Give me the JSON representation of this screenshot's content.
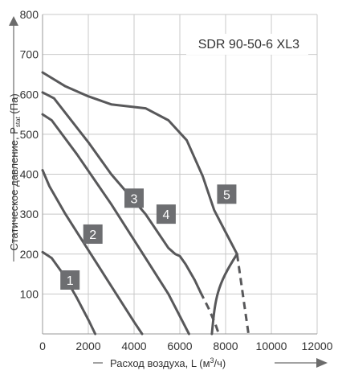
{
  "chart_data": {
    "type": "line",
    "model_label": "SDR 90-50-6 XL3",
    "xlabel": {
      "prefix": "Расход воздуха, L (м",
      "sup": "3",
      "suffix": "/ч)"
    },
    "ylabel": {
      "main": "Статическое давление, P",
      "sub": "stat",
      "suffix": " (Па)"
    },
    "xlim": [
      0,
      12000
    ],
    "ylim": [
      0,
      800
    ],
    "xticks": [
      "0",
      "2000",
      "4000",
      "6000",
      "8000",
      "10000",
      "12000"
    ],
    "yticks": [
      "100",
      "200",
      "300",
      "400",
      "500",
      "600",
      "700",
      "800"
    ],
    "grid": true,
    "series": [
      {
        "name": "1",
        "solid": [
          [
            0,
            205
          ],
          [
            400,
            190
          ],
          [
            900,
            150
          ],
          [
            1500,
            90
          ],
          [
            2050,
            30
          ],
          [
            2300,
            0
          ]
        ],
        "dashed": [],
        "label_at": [
          1200,
          135
        ]
      },
      {
        "name": "2",
        "solid": [
          [
            0,
            410
          ],
          [
            300,
            370
          ],
          [
            1000,
            300
          ],
          [
            2000,
            210
          ],
          [
            3000,
            120
          ],
          [
            4000,
            30
          ],
          [
            4350,
            0
          ]
        ],
        "dashed": [],
        "label_at": [
          2200,
          250
        ]
      },
      {
        "name": "3",
        "solid": [
          [
            0,
            550
          ],
          [
            400,
            535
          ],
          [
            1500,
            450
          ],
          [
            3000,
            325
          ],
          [
            4500,
            190
          ],
          [
            5500,
            100
          ],
          [
            6400,
            0
          ]
        ],
        "dashed": [],
        "label_at": [
          4000,
          340
        ]
      },
      {
        "name": "4",
        "solid": [
          [
            0,
            605
          ],
          [
            500,
            590
          ],
          [
            2000,
            480
          ],
          [
            3000,
            400
          ],
          [
            4500,
            300
          ],
          [
            5500,
            215
          ],
          [
            5800,
            200
          ],
          [
            6000,
            195
          ],
          [
            6250,
            175
          ],
          [
            6650,
            135
          ],
          [
            6900,
            105
          ]
        ],
        "dashed": [
          [
            6900,
            105
          ],
          [
            7250,
            65
          ],
          [
            7550,
            25
          ],
          [
            7700,
            0
          ]
        ],
        "label_at": [
          5400,
          300
        ]
      },
      {
        "name": "5",
        "solid": [
          [
            0,
            655
          ],
          [
            1000,
            620
          ],
          [
            2000,
            595
          ],
          [
            3000,
            575
          ],
          [
            4500,
            565
          ],
          [
            5500,
            535
          ],
          [
            6300,
            485
          ],
          [
            7000,
            395
          ],
          [
            7500,
            310
          ],
          [
            8000,
            255
          ],
          [
            8500,
            200
          ]
        ],
        "dashed": [
          [
            8500,
            200
          ],
          [
            8750,
            100
          ],
          [
            9000,
            0
          ]
        ],
        "label_at": [
          8050,
          350
        ]
      }
    ],
    "curve_color": "#58585a",
    "badge_color": "#6d6e71",
    "grid_color": "#c8c8c8",
    "arrow_color": "#6b6b6b"
  }
}
